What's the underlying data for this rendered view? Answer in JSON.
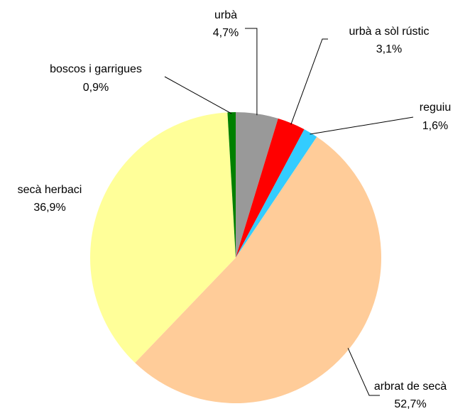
{
  "chart_data": {
    "type": "pie",
    "categories": [
      "urbà",
      "urbà a sòl rústic",
      "reguiu",
      "arbrat de secà",
      "secà herbaci",
      "boscos i garrigues"
    ],
    "values": [
      4.7,
      3.1,
      1.6,
      52.7,
      36.9,
      0.9
    ],
    "value_labels": [
      "4,7%",
      "3,1%",
      "1,6%",
      "52,7%",
      "36,9%",
      "0,9%"
    ],
    "colors": [
      "#999999",
      "#ff0000",
      "#33ccff",
      "#ffcc99",
      "#ffff99",
      "#008000"
    ]
  }
}
